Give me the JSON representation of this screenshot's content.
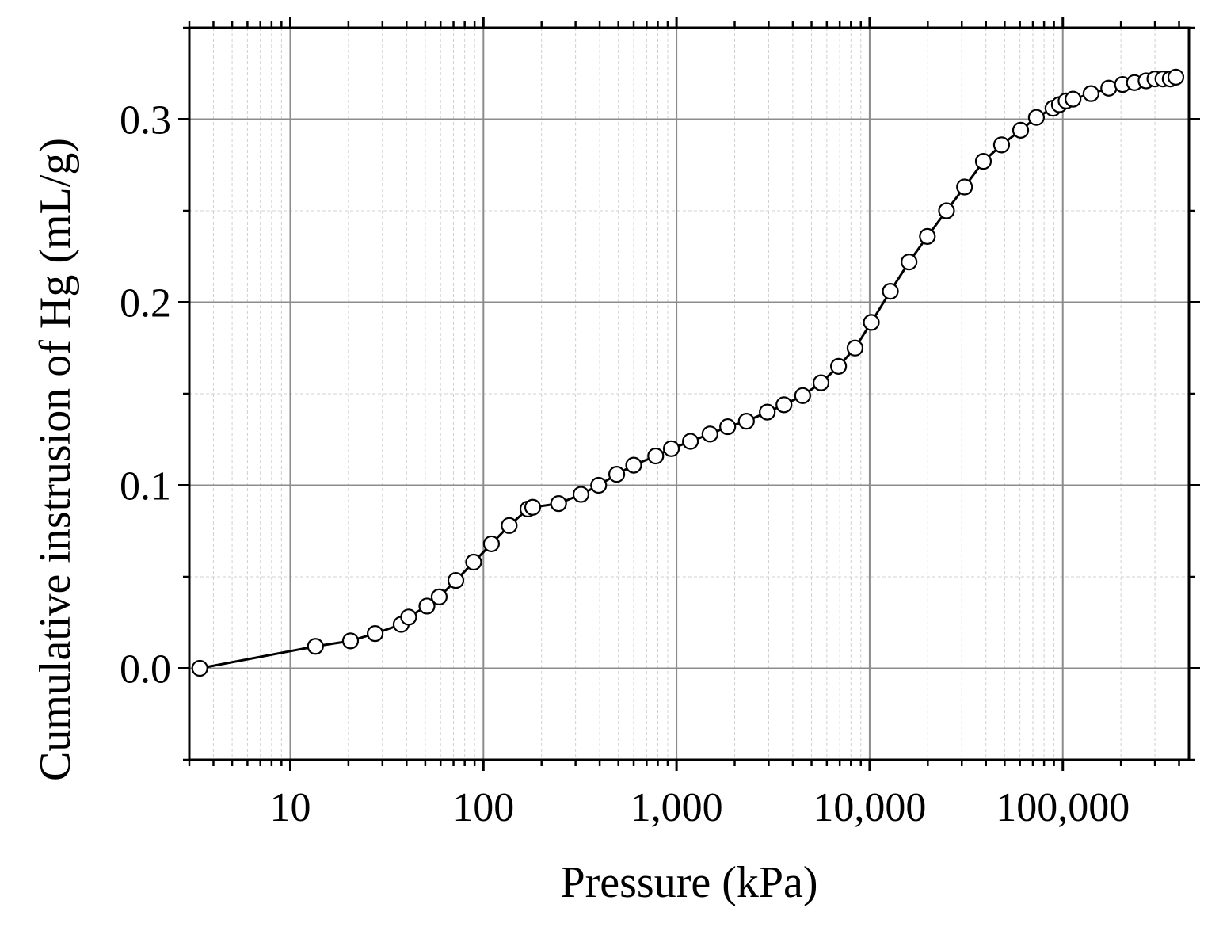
{
  "chart_data": {
    "type": "line",
    "title": "",
    "xlabel": "Pressure (kPa)",
    "ylabel": "Cumulative instrusion of Hg (mL/g)",
    "x_scale": "log",
    "xlim": [
      3,
      450000
    ],
    "ylim": [
      -0.05,
      0.35
    ],
    "x_ticks": [
      10,
      100,
      1000,
      10000,
      100000
    ],
    "x_tick_labels": [
      "10",
      "100",
      "1,000",
      "10,000",
      "100,000"
    ],
    "y_ticks": [
      0.0,
      0.1,
      0.2,
      0.3
    ],
    "y_tick_labels": [
      "0.0",
      "0.1",
      "0.2",
      "0.3"
    ],
    "grid": true,
    "legend": "none",
    "marker": "open-circle",
    "series": [
      {
        "color": "#000000",
        "x": [
          3.4,
          13.5,
          20.5,
          27.5,
          37.5,
          41,
          51,
          59,
          72,
          89,
          110,
          136,
          170,
          180,
          245,
          320,
          395,
          490,
          600,
          780,
          940,
          1180,
          1490,
          1840,
          2300,
          2950,
          3600,
          4500,
          5600,
          6900,
          8400,
          10200,
          12800,
          16000,
          19900,
          25000,
          31000,
          38800,
          48200,
          60500,
          73000,
          89000,
          96000,
          104000,
          113000,
          140000,
          173000,
          204000,
          235000,
          270000,
          300000,
          330000,
          360000,
          385000
        ],
        "y": [
          0.0,
          0.012,
          0.015,
          0.019,
          0.024,
          0.028,
          0.034,
          0.039,
          0.048,
          0.058,
          0.068,
          0.078,
          0.087,
          0.088,
          0.09,
          0.095,
          0.1,
          0.106,
          0.111,
          0.116,
          0.12,
          0.124,
          0.128,
          0.132,
          0.135,
          0.14,
          0.144,
          0.149,
          0.156,
          0.165,
          0.175,
          0.189,
          0.206,
          0.222,
          0.236,
          0.25,
          0.263,
          0.277,
          0.286,
          0.294,
          0.301,
          0.306,
          0.308,
          0.31,
          0.311,
          0.314,
          0.317,
          0.319,
          0.32,
          0.321,
          0.322,
          0.322,
          0.322,
          0.323
        ]
      }
    ]
  }
}
